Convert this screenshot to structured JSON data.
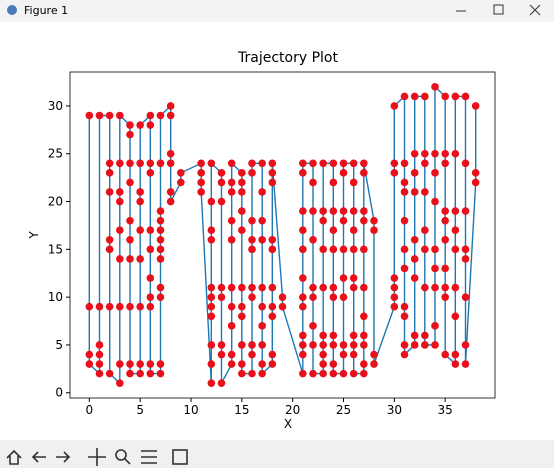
{
  "window": {
    "title": "Figure 1"
  },
  "chart_data": {
    "type": "trajectory",
    "title": "Trajectory Plot",
    "x_label": "X",
    "y_label": "Y",
    "line_color": "#1f77b4",
    "marker_color": "#e8101a",
    "xlim": [
      -1.9,
      39.9
    ],
    "ylim": [
      -0.55,
      33.55
    ],
    "xticks": [
      0,
      5,
      10,
      15,
      20,
      25,
      30,
      35
    ],
    "yticks": [
      0,
      5,
      10,
      15,
      20,
      25,
      30
    ],
    "x": [
      0,
      0,
      0,
      0,
      1,
      1,
      1,
      1,
      1,
      1,
      2,
      2,
      2,
      2,
      2,
      2,
      2,
      2,
      3,
      3,
      3,
      3,
      3,
      3,
      3,
      3,
      3,
      4,
      4,
      4,
      4,
      4,
      4,
      4,
      4,
      4,
      4,
      5,
      5,
      5,
      5,
      5,
      5,
      5,
      5,
      5,
      6,
      6,
      6,
      6,
      6,
      6,
      6,
      6,
      6,
      6,
      6,
      7,
      7,
      7,
      7,
      7,
      7,
      7,
      7,
      7,
      7,
      7,
      7,
      8,
      8,
      8,
      8,
      8,
      8,
      9,
      9,
      11,
      11,
      11,
      11,
      12,
      12,
      12,
      12,
      12,
      12,
      12,
      12,
      12,
      12,
      12,
      13,
      13,
      13,
      13,
      13,
      13,
      13,
      13,
      14,
      14,
      14,
      14,
      14,
      14,
      14,
      14,
      14,
      14,
      15,
      15,
      15,
      15,
      15,
      15,
      15,
      15,
      15,
      15,
      15,
      16,
      16,
      16,
      16,
      16,
      16,
      16,
      16,
      16,
      16,
      17,
      17,
      17,
      17,
      17,
      17,
      17,
      17,
      17,
      17,
      18,
      18,
      18,
      18,
      18,
      18,
      18,
      18,
      18,
      18,
      19,
      19,
      21,
      21,
      21,
      21,
      21,
      21,
      21,
      21,
      21,
      21,
      21,
      21,
      22,
      22,
      22,
      22,
      22,
      22,
      22,
      22,
      22,
      23,
      23,
      23,
      23,
      23,
      23,
      23,
      23,
      23,
      23,
      24,
      24,
      24,
      24,
      24,
      24,
      24,
      24,
      24,
      24,
      24,
      25,
      25,
      25,
      25,
      25,
      25,
      25,
      25,
      25,
      25,
      26,
      26,
      26,
      26,
      26,
      26,
      26,
      26,
      26,
      26,
      26,
      27,
      27,
      27,
      27,
      27,
      27,
      27,
      27,
      27,
      27,
      27,
      28,
      28,
      28,
      28,
      30,
      30,
      30,
      30,
      30,
      30,
      30,
      31,
      31,
      31,
      31,
      31,
      31,
      31,
      31,
      31,
      31,
      31,
      32,
      32,
      32,
      32,
      32,
      32,
      32,
      32,
      32,
      33,
      33,
      33,
      33,
      33,
      33,
      33,
      33,
      33,
      34,
      34,
      34,
      34,
      34,
      34,
      34,
      34,
      34,
      35,
      35,
      35,
      35,
      35,
      35,
      35,
      35,
      35,
      35,
      36,
      36,
      36,
      36,
      36,
      36,
      36,
      36,
      36,
      37,
      37,
      37,
      37,
      37,
      37,
      37,
      37,
      38,
      38,
      38
    ],
    "values": [
      29,
      9,
      4,
      3,
      2,
      3,
      4,
      5,
      9,
      29,
      29,
      24,
      23,
      21,
      16,
      15,
      9,
      2,
      1,
      3,
      9,
      14,
      17,
      20,
      21,
      24,
      29,
      28,
      27,
      24,
      22,
      18,
      16,
      14,
      9,
      3,
      2,
      2,
      3,
      9,
      14,
      17,
      20,
      21,
      24,
      28,
      29,
      28,
      24,
      23,
      17,
      15,
      12,
      10,
      9,
      3,
      2,
      2,
      3,
      10,
      11,
      14,
      15,
      16,
      17,
      18,
      19,
      24,
      29,
      30,
      29,
      25,
      24,
      21,
      20,
      22,
      23,
      24,
      23,
      22,
      21,
      1,
      3,
      5,
      8,
      9,
      10,
      11,
      16,
      17,
      20,
      24,
      23,
      22,
      20,
      11,
      10,
      5,
      4,
      1,
      3,
      4,
      7,
      9,
      11,
      16,
      18,
      21,
      22,
      24,
      23,
      22,
      21,
      19,
      17,
      11,
      9,
      8,
      5,
      3,
      2,
      2,
      4,
      5,
      10,
      11,
      15,
      16,
      18,
      23,
      24,
      24,
      21,
      18,
      16,
      11,
      9,
      7,
      5,
      3,
      2,
      3,
      4,
      8,
      9,
      11,
      15,
      16,
      22,
      23,
      24,
      10,
      9,
      2,
      4,
      5,
      6,
      9,
      10,
      12,
      15,
      17,
      19,
      23,
      24,
      24,
      22,
      19,
      16,
      11,
      10,
      7,
      5,
      2,
      2,
      3,
      4,
      5,
      6,
      11,
      15,
      18,
      19,
      24,
      24,
      22,
      19,
      17,
      15,
      11,
      10,
      6,
      5,
      3,
      2,
      2,
      4,
      5,
      10,
      12,
      15,
      18,
      19,
      23,
      24,
      24,
      22,
      19,
      17,
      15,
      12,
      11,
      6,
      5,
      4,
      2,
      2,
      3,
      5,
      6,
      8,
      11,
      15,
      18,
      19,
      23,
      24,
      18,
      17,
      4,
      3,
      9,
      10,
      11,
      12,
      23,
      24,
      30,
      31,
      24,
      22,
      21,
      18,
      15,
      13,
      9,
      8,
      5,
      4,
      5,
      6,
      12,
      14,
      16,
      21,
      23,
      25,
      31,
      31,
      25,
      24,
      21,
      17,
      15,
      11,
      6,
      5,
      5,
      7,
      11,
      13,
      15,
      20,
      23,
      25,
      32,
      31,
      25,
      24,
      19,
      18,
      16,
      13,
      11,
      10,
      4,
      3,
      4,
      8,
      11,
      15,
      17,
      19,
      25,
      31,
      31,
      24,
      19,
      15,
      14,
      10,
      5,
      3,
      22,
      23,
      30
    ]
  }
}
